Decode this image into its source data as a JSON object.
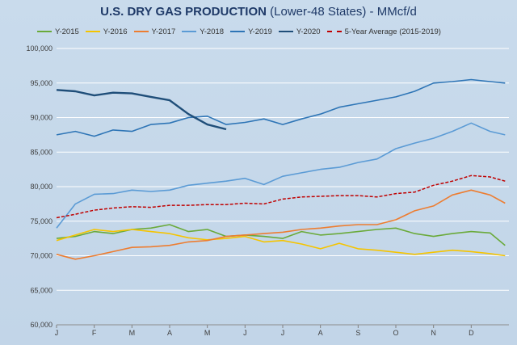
{
  "chart_data": {
    "type": "line",
    "title": "U.S. DRY GAS PRODUCTION",
    "title_suffix": "(Lower-48 States) - MMcf/d",
    "xlabel": "",
    "ylabel": "",
    "ylim": [
      60000,
      100000
    ],
    "yticks": [
      "60,000",
      "65,000",
      "70,000",
      "75,000",
      "80,000",
      "85,000",
      "90,000",
      "95,000",
      "100,000"
    ],
    "xticks": [
      "J",
      "F",
      "M",
      "A",
      "M",
      "J",
      "J",
      "A",
      "S",
      "O",
      "N",
      "D"
    ],
    "x_months": [
      1,
      1.5,
      2,
      2.5,
      3,
      3.5,
      4,
      4.5,
      5,
      5.5,
      6,
      6.5,
      7,
      7.5,
      8,
      8.5,
      9,
      9.5,
      10,
      10.5,
      11,
      11.5,
      12,
      12.5,
      12.9
    ],
    "grid": true,
    "legend_position": "top",
    "series": [
      {
        "name": "Y-2015",
        "color": "#6aaa3a",
        "width": 1.6,
        "dash": "",
        "values": [
          72500,
          72800,
          73500,
          73200,
          73800,
          74000,
          74500,
          73500,
          73800,
          72800,
          73000,
          72800,
          72500,
          73500,
          73000,
          73200,
          73500,
          73800,
          74000,
          73200,
          72800,
          73200,
          73500,
          73300,
          71500
        ]
      },
      {
        "name": "Y-2016",
        "color": "#f5c400",
        "width": 1.6,
        "dash": "",
        "values": [
          72200,
          73000,
          73800,
          73500,
          73800,
          73500,
          73200,
          72600,
          72300,
          72500,
          72800,
          72000,
          72200,
          71700,
          71000,
          71800,
          71000,
          70800,
          70500,
          70200,
          70500,
          70800,
          70600,
          70300,
          70000
        ]
      },
      {
        "name": "Y-2017",
        "color": "#ed7d31",
        "width": 1.6,
        "dash": "",
        "values": [
          70200,
          69500,
          70000,
          70600,
          71200,
          71300,
          71500,
          72000,
          72200,
          72800,
          73000,
          73200,
          73400,
          73800,
          74000,
          74300,
          74500,
          74500,
          75200,
          76500,
          77200,
          78800,
          79500,
          78800,
          77600
        ]
      },
      {
        "name": "Y-2018",
        "color": "#5b9bd5",
        "width": 1.6,
        "dash": "",
        "values": [
          74000,
          77500,
          78900,
          79000,
          79500,
          79300,
          79500,
          80200,
          80500,
          80800,
          81200,
          80300,
          81500,
          82000,
          82500,
          82800,
          83500,
          84000,
          85500,
          86300,
          87000,
          88000,
          89200,
          88000,
          87500
        ]
      },
      {
        "name": "Y-2019",
        "color": "#2e75b6",
        "width": 1.6,
        "dash": "",
        "values": [
          87500,
          88000,
          87300,
          88200,
          88000,
          89000,
          89200,
          90000,
          90200,
          89000,
          89300,
          89800,
          89000,
          89800,
          90500,
          91500,
          92000,
          92500,
          93000,
          93800,
          95000,
          95200,
          95500,
          95200,
          95000
        ]
      },
      {
        "name": "Y-2020",
        "color": "#1f4e79",
        "width": 2.4,
        "dash": "",
        "values": [
          94000,
          93800,
          93200,
          93600,
          93500,
          93000,
          92500,
          90500,
          89000,
          88300,
          null,
          null,
          null,
          null,
          null,
          null,
          null,
          null,
          null,
          null,
          null,
          null,
          null,
          null,
          null
        ]
      },
      {
        "name": "5-Year Average (2015-2019)",
        "color": "#c00000",
        "width": 1.5,
        "dash": "4,2",
        "values": [
          75500,
          76000,
          76600,
          76900,
          77100,
          77000,
          77300,
          77300,
          77400,
          77400,
          77600,
          77500,
          78200,
          78500,
          78600,
          78700,
          78700,
          78500,
          79000,
          79200,
          80200,
          80800,
          81600,
          81400,
          80800
        ]
      }
    ]
  }
}
